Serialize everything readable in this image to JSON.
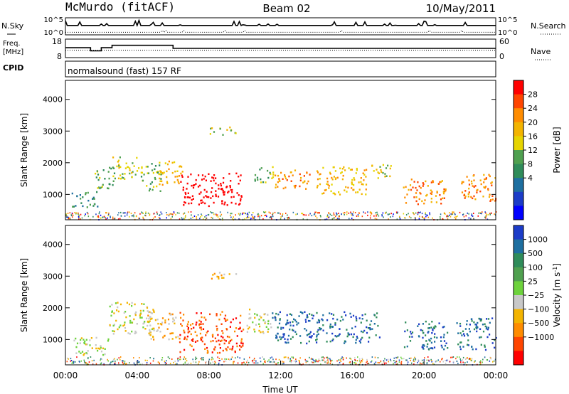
{
  "header": {
    "station": "McMurdo (fitACF)",
    "beam": "Beam 02",
    "date": "10/May/2011"
  },
  "chart_data": [
    {
      "type": "line",
      "panel": "noise",
      "left_label": "N.Sky",
      "right_label": "N.Search",
      "left_ticks": [
        "10^5",
        "10^0"
      ],
      "right_ticks": [
        "10^5",
        "10^0"
      ],
      "series": [
        {
          "name": "N.Sky",
          "style": "solid",
          "level": 0.55
        },
        {
          "name": "N.Search",
          "style": "dotted",
          "level": 0.15
        }
      ]
    },
    {
      "type": "line",
      "panel": "frequency",
      "left_label_line1": "Freq.",
      "left_label_line2": "[MHz]",
      "right_label": "Nave",
      "left_ticks": [
        "18",
        "8"
      ],
      "right_ticks": [
        "60",
        "0"
      ],
      "ylim_left": [
        8,
        18
      ],
      "ylim_right": [
        0,
        60
      ],
      "series": [
        {
          "name": "Freq.",
          "style": "dotted",
          "values": [
            12,
            12,
            12,
            12,
            12,
            12
          ]
        },
        {
          "name": "Nave",
          "style": "solid",
          "x_hours": [
            0,
            1.4,
            1.4,
            2.0,
            2.0,
            2.6,
            2.6,
            6.0,
            6.0,
            24
          ],
          "values": [
            32,
            32,
            22,
            22,
            32,
            32,
            40,
            40,
            30,
            30
          ]
        }
      ]
    },
    {
      "type": "text",
      "panel": "cpid",
      "label": "CPID",
      "value": "normalsound (fast) 157 RF"
    },
    {
      "type": "heatmap",
      "panel": "power",
      "ylabel": "Slant Range [km]",
      "ylim": [
        200,
        4600
      ],
      "yticks": [
        1000,
        2000,
        3000,
        4000
      ],
      "xlim": [
        0,
        24
      ],
      "colorbar": {
        "label": "Power [dB]",
        "ticks": [
          "28",
          "24",
          "20",
          "16",
          "12",
          "8",
          "4"
        ],
        "colors": [
          "#ff0000",
          "#ff4500",
          "#ff8c00",
          "#f3b400",
          "#e6d400",
          "#4fa04f",
          "#2f8c5a",
          "#1e6fa0",
          "#1c3cc8",
          "#0000ff"
        ]
      },
      "blobs": [
        {
          "t0": 0.3,
          "t1": 1.8,
          "r0": 600,
          "r1": 1100,
          "level": 3
        },
        {
          "t0": 1.6,
          "t1": 2.7,
          "r0": 1100,
          "r1": 1900,
          "level": 4
        },
        {
          "t0": 2.5,
          "t1": 4.0,
          "r0": 1500,
          "r1": 2200,
          "level": 5
        },
        {
          "t0": 4.0,
          "t1": 5.3,
          "r0": 1100,
          "r1": 2000,
          "level": 4
        },
        {
          "t0": 5.2,
          "t1": 6.5,
          "r0": 1300,
          "r1": 2100,
          "level": 6
        },
        {
          "t0": 6.4,
          "t1": 9.8,
          "r0": 650,
          "r1": 1700,
          "level": 10
        },
        {
          "t0": 8.0,
          "t1": 9.5,
          "r0": 2900,
          "r1": 3150,
          "level": 5
        },
        {
          "t0": 10.4,
          "t1": 11.6,
          "r0": 1400,
          "r1": 1900,
          "level": 4
        },
        {
          "t0": 11.6,
          "t1": 13.6,
          "r0": 1200,
          "r1": 1800,
          "level": 7
        },
        {
          "t0": 14.0,
          "t1": 16.8,
          "r0": 1000,
          "r1": 1900,
          "level": 6
        },
        {
          "t0": 17.0,
          "t1": 18.2,
          "r0": 1500,
          "r1": 2000,
          "level": 5
        },
        {
          "t0": 18.8,
          "t1": 21.2,
          "r0": 700,
          "r1": 1500,
          "level": 7
        },
        {
          "t0": 22.0,
          "t1": 24.0,
          "r0": 800,
          "r1": 1700,
          "level": 7
        }
      ]
    },
    {
      "type": "heatmap",
      "panel": "velocity",
      "ylabel": "Slant Range [km]",
      "ylim": [
        200,
        4600
      ],
      "yticks": [
        1000,
        2000,
        3000,
        4000
      ],
      "xlim": [
        0,
        24
      ],
      "xticks": [
        "00:00",
        "04:00",
        "08:00",
        "12:00",
        "16:00",
        "20:00",
        "00:00"
      ],
      "xlabel": "Time UT",
      "colorbar": {
        "label": "Velocity [m s",
        "label_sup": "-1",
        "label_end": "]",
        "ticks": [
          "1000",
          "500",
          "100",
          "25",
          "−25",
          "−100",
          "−500",
          "−1000"
        ],
        "colors": [
          "#1c3cc8",
          "#1e6fa0",
          "#2f8c5a",
          "#4fa04f",
          "#6dd23c",
          "#c8c8c8",
          "#f3b400",
          "#ff8c00",
          "#ff4500",
          "#ff0000"
        ]
      },
      "blobs": [
        {
          "t0": 0.3,
          "t1": 2.4,
          "r0": 500,
          "r1": 1100,
          "level": 4
        },
        {
          "t0": 2.4,
          "t1": 5.0,
          "r0": 1200,
          "r1": 2200,
          "level": 4
        },
        {
          "t0": 4.5,
          "t1": 6.3,
          "r0": 1000,
          "r1": 1900,
          "level": 3
        },
        {
          "t0": 6.3,
          "t1": 9.9,
          "r0": 600,
          "r1": 1900,
          "level": 1
        },
        {
          "t0": 8.0,
          "t1": 9.5,
          "r0": 2900,
          "r1": 3150,
          "level": 3
        },
        {
          "t0": 10.0,
          "t1": 11.5,
          "r0": 1200,
          "r1": 2000,
          "level": 4
        },
        {
          "t0": 11.5,
          "t1": 17.5,
          "r0": 900,
          "r1": 1900,
          "level": 8
        },
        {
          "t0": 18.8,
          "t1": 21.3,
          "r0": 700,
          "r1": 1600,
          "level": 8
        },
        {
          "t0": 21.8,
          "t1": 24.0,
          "r0": 700,
          "r1": 1700,
          "level": 8
        }
      ]
    }
  ]
}
